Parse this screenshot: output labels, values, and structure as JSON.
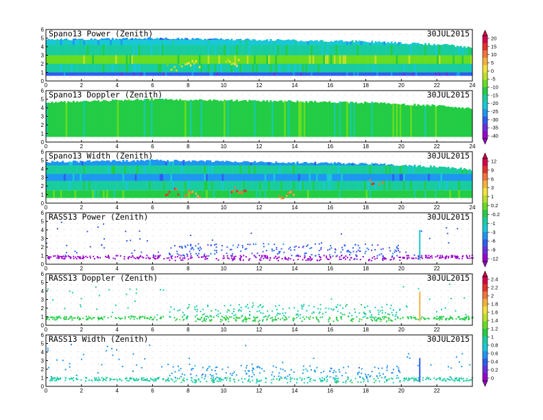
{
  "colors": {
    "palette": [
      "#9900cc",
      "#6a2fe0",
      "#2f5cf0",
      "#1e96f2",
      "#18c8d8",
      "#19cca0",
      "#22cc44",
      "#66dd22",
      "#bde02a",
      "#f2e23a",
      "#f4b23a",
      "#f2733a",
      "#e8302a",
      "#d8004a"
    ],
    "dot_grid": "#c8c8c8"
  },
  "chart_data": [
    {
      "type": "heatmap",
      "title": "Spano13 Power (Zenith)",
      "date": "30JUL2015",
      "xlim": [
        0,
        24
      ],
      "ylim": [
        0,
        6
      ],
      "xticks": [
        "0",
        "2",
        "4",
        "6",
        "8",
        "10",
        "12",
        "14",
        "16",
        "18",
        "20",
        "22",
        "24"
      ],
      "yticks": [
        "0",
        "1",
        "2",
        "3",
        "4",
        "5",
        "6"
      ],
      "colorbar": [
        "20",
        "15",
        "10",
        "5",
        "0",
        "-5",
        "-10",
        "-15",
        "-20",
        "-25",
        "-30",
        "-35",
        "-40"
      ],
      "layers": [
        {
          "height_km": 0.6,
          "color_index": 2
        },
        {
          "height_km": 1.0,
          "color_index": 5
        },
        {
          "height_km": 2.0,
          "color_index": 7
        },
        {
          "height_km": 3.0,
          "color_index": 5
        },
        {
          "height_km": 4.2,
          "color_index": 4
        },
        {
          "height_km": 4.8,
          "color_index": 3
        }
      ],
      "top_km": [
        [
          0,
          4.8
        ],
        [
          6,
          5.0
        ],
        [
          12,
          4.8
        ],
        [
          18,
          4.6
        ],
        [
          22.5,
          4.2
        ],
        [
          24,
          3.9
        ]
      ],
      "hotspots": [
        {
          "time_h": 8.2,
          "height_km": 1.8,
          "color_index": 9
        },
        {
          "time_h": 10.5,
          "height_km": 2.0,
          "color_index": 9
        },
        {
          "time_h": 7.2,
          "height_km": 1.4,
          "color_index": 8
        }
      ]
    },
    {
      "type": "heatmap",
      "title": "Spano13 Doppler (Zenith)",
      "date": "30JUL2015",
      "xlim": [
        0,
        24
      ],
      "ylim": [
        0,
        6
      ],
      "xticks": [
        "0",
        "2",
        "4",
        "6",
        "8",
        "10",
        "12",
        "14",
        "16",
        "18",
        "20",
        "22",
        "24"
      ],
      "yticks": [
        "0",
        "1",
        "2",
        "3",
        "4",
        "5",
        "6"
      ],
      "colorbar": [
        "20",
        "15",
        "10",
        "5",
        "0",
        "-5",
        "-10",
        "-15",
        "-20",
        "-25",
        "-30",
        "-35",
        "-40"
      ],
      "layers": [
        {
          "height_km": 0.6,
          "color_index": 6
        },
        {
          "height_km": 4.8,
          "color_index": 6
        }
      ],
      "top_km": [
        [
          0,
          4.6
        ],
        [
          6,
          5.0
        ],
        [
          12,
          4.8
        ],
        [
          18,
          4.6
        ],
        [
          22.5,
          4.2
        ],
        [
          24,
          3.9
        ]
      ],
      "hotspots": []
    },
    {
      "type": "heatmap",
      "title": "Spano13 Width (Zenith)",
      "date": "30JUL2015",
      "xlim": [
        0,
        24
      ],
      "ylim": [
        0,
        6
      ],
      "xticks": [
        "0",
        "2",
        "4",
        "6",
        "8",
        "10",
        "12",
        "14",
        "16",
        "18",
        "20",
        "22",
        "24"
      ],
      "yticks": [
        "0",
        "1",
        "2",
        "3",
        "4",
        "5",
        "6"
      ],
      "colorbar": [
        "12",
        "9",
        "6",
        "3",
        "1",
        "0.2",
        "-0.2",
        "-1",
        "-3",
        "-6",
        "-9",
        "-12"
      ],
      "layers": [
        {
          "height_km": 0.6,
          "color_index": 6
        },
        {
          "height_km": 1.5,
          "color_index": 5
        },
        {
          "height_km": 2.6,
          "color_index": 3
        },
        {
          "height_km": 3.4,
          "color_index": 5
        },
        {
          "height_km": 4.4,
          "color_index": 3
        }
      ],
      "top_km": [
        [
          0,
          4.8
        ],
        [
          6,
          5.0
        ],
        [
          12,
          4.8
        ],
        [
          18,
          4.6
        ],
        [
          22.5,
          4.2
        ],
        [
          24,
          3.9
        ]
      ],
      "hotspots": [
        {
          "time_h": 7.0,
          "height_km": 1.2,
          "color_index": 12
        },
        {
          "time_h": 8.2,
          "height_km": 1.0,
          "color_index": 11
        },
        {
          "time_h": 10.8,
          "height_km": 1.4,
          "color_index": 12
        },
        {
          "time_h": 13.5,
          "height_km": 0.8,
          "color_index": 11
        },
        {
          "time_h": 18.6,
          "height_km": 2.2,
          "color_index": 12
        }
      ]
    },
    {
      "type": "scatter",
      "title": "RASS13 Power (Zenith)",
      "date": "30JUL2015",
      "xlim": [
        0,
        24
      ],
      "ylim": [
        0,
        6
      ],
      "xticks": [
        "0",
        "2",
        "4",
        "6",
        "8",
        "10",
        "12",
        "14",
        "16",
        "18",
        "20",
        "22"
      ],
      "yticks": [
        "0",
        "1",
        "2",
        "3",
        "4",
        "5",
        "6"
      ],
      "colorbar": [
        "3",
        "2",
        "1",
        "0",
        "-1",
        "-3",
        "-6",
        "-9",
        "-12"
      ],
      "base_color_index": 0,
      "upper_color_index": 2,
      "active_hours": [
        6.9,
        19.9
      ],
      "block_top_km": 2.5,
      "spike": {
        "time_h": 21.0,
        "height_km": 4.0,
        "color_index": 4
      }
    },
    {
      "type": "scatter",
      "title": "RASS13 Doppler (Zenith)",
      "date": "30JUL2015",
      "xlim": [
        0,
        24
      ],
      "ylim": [
        0,
        6
      ],
      "xticks": [
        "0",
        "2",
        "4",
        "6",
        "8",
        "10",
        "12",
        "14",
        "16",
        "18",
        "20",
        "22"
      ],
      "yticks": [
        "0",
        "1",
        "2",
        "3",
        "4",
        "5",
        "6"
      ],
      "colorbar": [
        "2.4",
        "2.2",
        "2",
        "1.8",
        "1.6",
        "1.4",
        "1.2",
        "1",
        "0.8",
        "0.6",
        "0.4",
        "0.2",
        "0"
      ],
      "base_color_index": 6,
      "upper_color_index": 5,
      "active_hours": [
        6.9,
        19.9
      ],
      "block_top_km": 2.5,
      "spike": {
        "time_h": 21.0,
        "height_km": 3.9,
        "color_index": 10
      }
    },
    {
      "type": "scatter",
      "title": "RASS13 Width (Zenith)",
      "date": "30JUL2015",
      "xlim": [
        0,
        24
      ],
      "ylim": [
        0,
        6
      ],
      "xticks": [
        "0",
        "2",
        "4",
        "6",
        "8",
        "10",
        "12",
        "14",
        "16",
        "18",
        "20",
        "22"
      ],
      "yticks": [
        "0",
        "1",
        "2",
        "3",
        "4",
        "5",
        "6"
      ],
      "colorbar": [],
      "base_color_index": 5,
      "upper_color_index": 3,
      "active_hours": [
        6.9,
        19.9
      ],
      "block_top_km": 2.5,
      "spike": {
        "time_h": 21.0,
        "height_km": 3.3,
        "color_index": 2
      }
    }
  ]
}
